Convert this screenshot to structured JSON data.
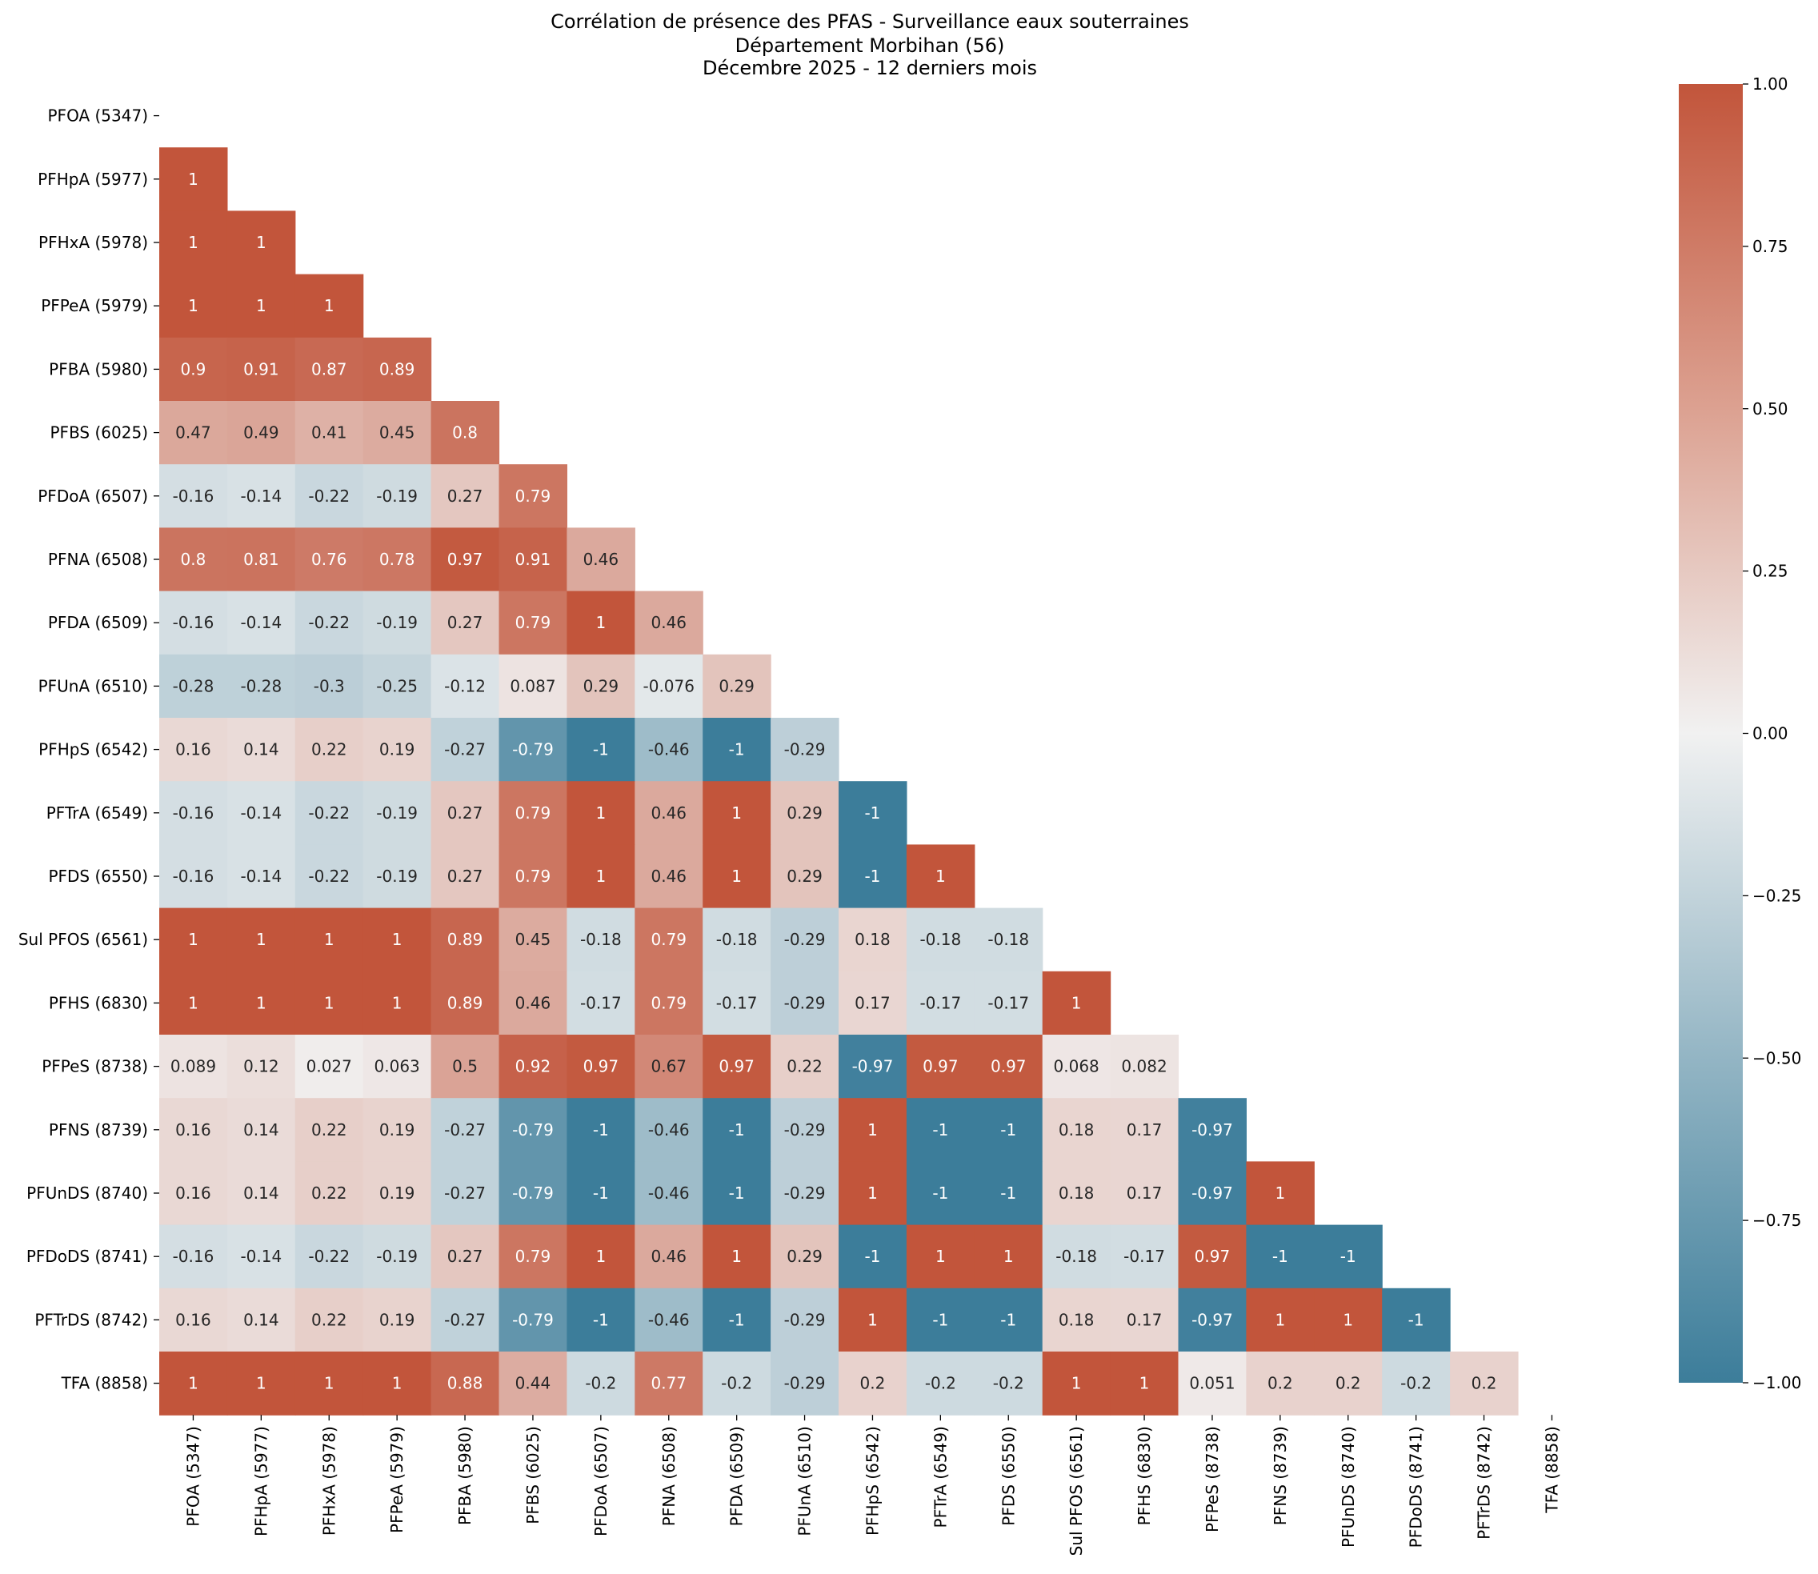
{
  "chart_data": {
    "type": "heatmap",
    "title": [
      "Corrélation de présence des PFAS - Surveillance eaux souterraines",
      "Département Morbihan (56)",
      "Décembre 2025 - 12 derniers mois"
    ],
    "labels": [
      "PFOA (5347)",
      "PFHpA (5977)",
      "PFHxA (5978)",
      "PFPeA (5979)",
      "PFBA (5980)",
      "PFBS (6025)",
      "PFDoA (6507)",
      "PFNA (6508)",
      "PFDA (6509)",
      "PFUnA (6510)",
      "PFHpS (6542)",
      "PFTrA (6549)",
      "PFDS (6550)",
      "Sul PFOS (6561)",
      "PFHS (6830)",
      "PFPeS (8738)",
      "PFNS (8739)",
      "PFUnDS (8740)",
      "PFDoDS (8741)",
      "PFTrDS (8742)",
      "TFA (8858)"
    ],
    "mask": "upper-triangle-including-diagonal",
    "cells": [
      [],
      [
        "1"
      ],
      [
        "1",
        "1"
      ],
      [
        "1",
        "1",
        "1"
      ],
      [
        "0.9",
        "0.91",
        "0.87",
        "0.89"
      ],
      [
        "0.47",
        "0.49",
        "0.41",
        "0.45",
        "0.8"
      ],
      [
        "-0.16",
        "-0.14",
        "-0.22",
        "-0.19",
        "0.27",
        "0.79"
      ],
      [
        "0.8",
        "0.81",
        "0.76",
        "0.78",
        "0.97",
        "0.91",
        "0.46"
      ],
      [
        "-0.16",
        "-0.14",
        "-0.22",
        "-0.19",
        "0.27",
        "0.79",
        "1",
        "0.46"
      ],
      [
        "-0.28",
        "-0.28",
        "-0.3",
        "-0.25",
        "-0.12",
        "0.087",
        "0.29",
        "-0.076",
        "0.29"
      ],
      [
        "0.16",
        "0.14",
        "0.22",
        "0.19",
        "-0.27",
        "-0.79",
        "-1",
        "-0.46",
        "-1",
        "-0.29"
      ],
      [
        "-0.16",
        "-0.14",
        "-0.22",
        "-0.19",
        "0.27",
        "0.79",
        "1",
        "0.46",
        "1",
        "0.29",
        "-1"
      ],
      [
        "-0.16",
        "-0.14",
        "-0.22",
        "-0.19",
        "0.27",
        "0.79",
        "1",
        "0.46",
        "1",
        "0.29",
        "-1",
        "1"
      ],
      [
        "1",
        "1",
        "1",
        "1",
        "0.89",
        "0.45",
        "-0.18",
        "0.79",
        "-0.18",
        "-0.29",
        "0.18",
        "-0.18",
        "-0.18"
      ],
      [
        "1",
        "1",
        "1",
        "1",
        "0.89",
        "0.46",
        "-0.17",
        "0.79",
        "-0.17",
        "-0.29",
        "0.17",
        "-0.17",
        "-0.17",
        "1"
      ],
      [
        "0.089",
        "0.12",
        "0.027",
        "0.063",
        "0.5",
        "0.92",
        "0.97",
        "0.67",
        "0.97",
        "0.22",
        "-0.97",
        "0.97",
        "0.97",
        "0.068",
        "0.082"
      ],
      [
        "0.16",
        "0.14",
        "0.22",
        "0.19",
        "-0.27",
        "-0.79",
        "-1",
        "-0.46",
        "-1",
        "-0.29",
        "1",
        "-1",
        "-1",
        "0.18",
        "0.17",
        "-0.97"
      ],
      [
        "0.16",
        "0.14",
        "0.22",
        "0.19",
        "-0.27",
        "-0.79",
        "-1",
        "-0.46",
        "-1",
        "-0.29",
        "1",
        "-1",
        "-1",
        "0.18",
        "0.17",
        "-0.97",
        "1"
      ],
      [
        "-0.16",
        "-0.14",
        "-0.22",
        "-0.19",
        "0.27",
        "0.79",
        "1",
        "0.46",
        "1",
        "0.29",
        "-1",
        "1",
        "1",
        "-0.18",
        "-0.17",
        "0.97",
        "-1",
        "-1"
      ],
      [
        "0.16",
        "0.14",
        "0.22",
        "0.19",
        "-0.27",
        "-0.79",
        "-1",
        "-0.46",
        "-1",
        "-0.29",
        "1",
        "-1",
        "-1",
        "0.18",
        "0.17",
        "-0.97",
        "1",
        "1",
        "-1"
      ],
      [
        "1",
        "1",
        "1",
        "1",
        "0.88",
        "0.44",
        "-0.2",
        "0.77",
        "-0.2",
        "-0.29",
        "0.2",
        "-0.2",
        "-0.2",
        "1",
        "1",
        "0.051",
        "0.2",
        "0.2",
        "-0.2",
        "0.2"
      ]
    ],
    "colorbar": {
      "vmin": -1,
      "vmax": 1,
      "ticks": [
        "−1.00",
        "−0.75",
        "−0.50",
        "−0.25",
        "0.00",
        "0.25",
        "0.50",
        "0.75",
        "1.00"
      ],
      "colors": {
        "low": "#3c7d9a",
        "mid": "#f1f1f1",
        "high": "#c2553b"
      }
    },
    "xlabel": "",
    "ylabel": ""
  }
}
